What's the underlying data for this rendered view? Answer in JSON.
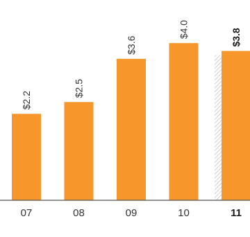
{
  "chart_data": {
    "type": "bar",
    "categories": [
      "07",
      "08",
      "09",
      "10",
      "11"
    ],
    "values": [
      2.2,
      2.5,
      3.6,
      4.0,
      3.8
    ],
    "value_labels": [
      "$2.2",
      "$2.5",
      "$3.6",
      "$4.0",
      "$3.8"
    ],
    "highlighted_category": "11",
    "title": "",
    "xlabel": "",
    "ylabel": "",
    "ylim": [
      0,
      4.55
    ],
    "grid": false,
    "legend": "none",
    "colors": {
      "bar": "#f7962a",
      "axis": "#555555",
      "text": "#333333",
      "hatch": "#bbbbbb"
    }
  }
}
